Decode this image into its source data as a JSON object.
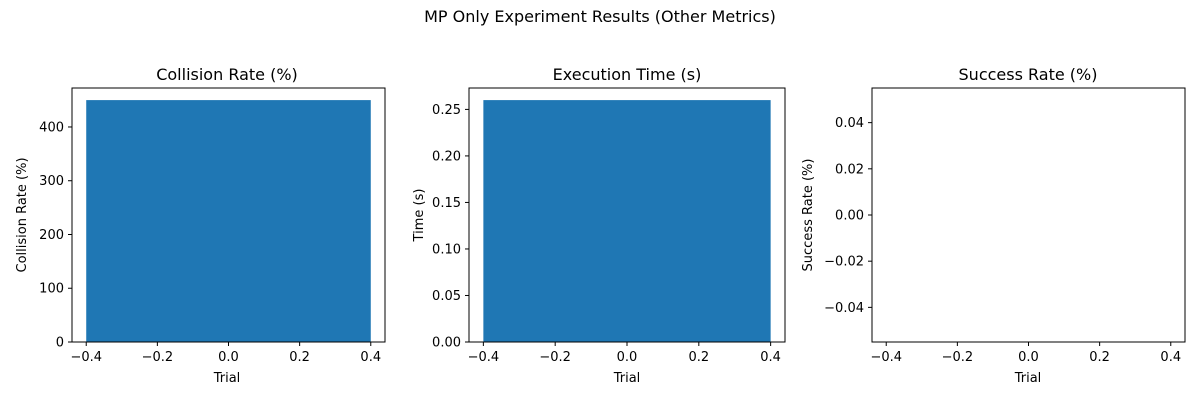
{
  "suptitle": "MP Only Experiment Results (Other Metrics)",
  "chart_data": [
    {
      "type": "bar",
      "title": "Collision Rate (%)",
      "xlabel": "Trial",
      "ylabel": "Collision Rate (%)",
      "bars": [
        {
          "x": 0.0,
          "width": 0.8,
          "value": 450
        }
      ],
      "xlim": [
        -0.44,
        0.44
      ],
      "ylim": [
        0,
        472.5
      ],
      "xticks": [
        -0.4,
        -0.2,
        0.0,
        0.2,
        0.4
      ],
      "xtick_labels": [
        "−0.4",
        "−0.2",
        "0.0",
        "0.2",
        "0.4"
      ],
      "yticks": [
        0,
        100,
        200,
        300,
        400
      ],
      "ytick_labels": [
        "0",
        "100",
        "200",
        "300",
        "400"
      ],
      "bar_color": "#1f77b4"
    },
    {
      "type": "bar",
      "title": "Execution Time (s)",
      "xlabel": "Trial",
      "ylabel": "Time (s)",
      "bars": [
        {
          "x": 0.0,
          "width": 0.8,
          "value": 0.26
        }
      ],
      "xlim": [
        -0.44,
        0.44
      ],
      "ylim": [
        0,
        0.273
      ],
      "xticks": [
        -0.4,
        -0.2,
        0.0,
        0.2,
        0.4
      ],
      "xtick_labels": [
        "−0.4",
        "−0.2",
        "0.0",
        "0.2",
        "0.4"
      ],
      "yticks": [
        0,
        0.05,
        0.1,
        0.15,
        0.2,
        0.25
      ],
      "ytick_labels": [
        "0.00",
        "0.05",
        "0.10",
        "0.15",
        "0.20",
        "0.25"
      ],
      "bar_color": "#1f77b4"
    },
    {
      "type": "bar",
      "title": "Success Rate (%)",
      "xlabel": "Trial",
      "ylabel": "Success Rate (%)",
      "bars": [],
      "xlim": [
        -0.44,
        0.44
      ],
      "ylim": [
        -0.055,
        0.055
      ],
      "xticks": [
        -0.4,
        -0.2,
        0.0,
        0.2,
        0.4
      ],
      "xtick_labels": [
        "−0.4",
        "−0.2",
        "0.0",
        "0.2",
        "0.4"
      ],
      "yticks": [
        -0.04,
        -0.02,
        0.0,
        0.02,
        0.04
      ],
      "ytick_labels": [
        "−0.04",
        "−0.02",
        "0.00",
        "0.02",
        "0.04"
      ],
      "bar_color": "#1f77b4"
    }
  ]
}
